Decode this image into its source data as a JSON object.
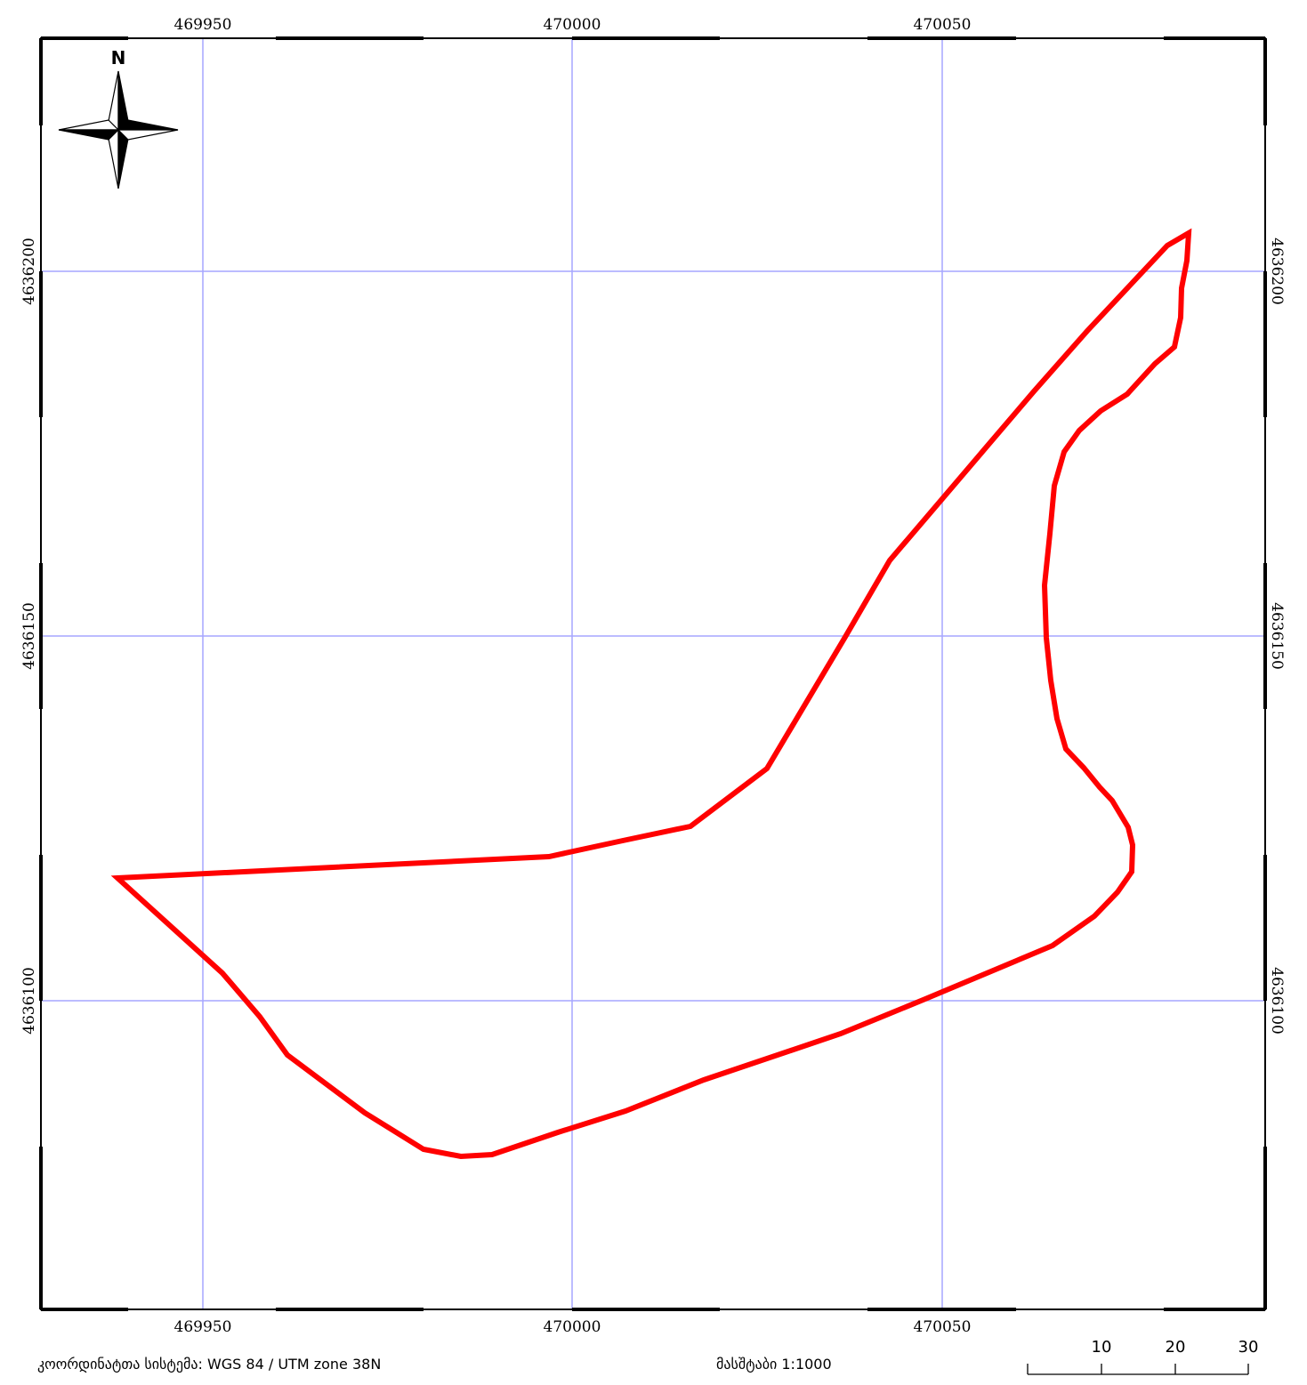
{
  "map": {
    "x_ticks": [
      "469950",
      "470000",
      "470050"
    ],
    "y_ticks": [
      "4636200",
      "4636150",
      "4636100"
    ],
    "north_label": "N",
    "colors": {
      "boundary": "#ff0000",
      "grid": "#a6a6ff",
      "frame": "#000000"
    }
  },
  "footer": {
    "crs_label": "კოორდინატთა სისტემა: WGS 84 / UTM zone 38N",
    "scale_label": "მასშტაბი 1:1000"
  },
  "scalebar": {
    "labels": [
      "10",
      "20",
      "30"
    ]
  }
}
